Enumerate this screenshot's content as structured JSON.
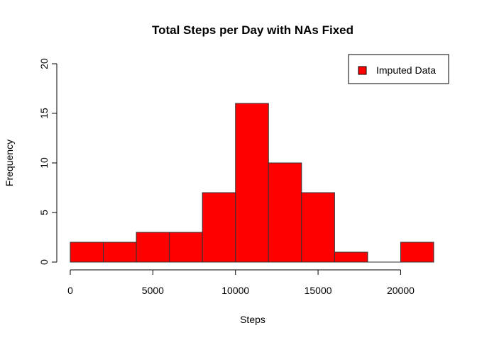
{
  "chart_data": {
    "type": "bar",
    "title": "Total Steps per Day with NAs Fixed",
    "xlabel": "Steps",
    "ylabel": "Frequency",
    "bin_width": 2000,
    "bins": [
      {
        "start": 0,
        "end": 2000,
        "count": 2
      },
      {
        "start": 2000,
        "end": 4000,
        "count": 2
      },
      {
        "start": 4000,
        "end": 6000,
        "count": 3
      },
      {
        "start": 6000,
        "end": 8000,
        "count": 3
      },
      {
        "start": 8000,
        "end": 10000,
        "count": 7
      },
      {
        "start": 10000,
        "end": 12000,
        "count": 16
      },
      {
        "start": 12000,
        "end": 14000,
        "count": 10
      },
      {
        "start": 14000,
        "end": 16000,
        "count": 7
      },
      {
        "start": 16000,
        "end": 18000,
        "count": 1
      },
      {
        "start": 18000,
        "end": 20000,
        "count": 0
      },
      {
        "start": 20000,
        "end": 22000,
        "count": 2
      }
    ],
    "xlim": [
      0,
      22000
    ],
    "ylim": [
      0,
      20
    ],
    "x_ticks": [
      0,
      5000,
      10000,
      15000,
      20000
    ],
    "y_ticks": [
      0,
      5,
      10,
      15,
      20
    ],
    "x_tick_labels": [
      "0",
      "5000",
      "10000",
      "15000",
      "20000"
    ],
    "y_tick_labels": [
      "0",
      "5",
      "10",
      "15",
      "20"
    ],
    "bar_color": "#ff0000",
    "bar_border_color": "#333333",
    "legend": {
      "placement": "top-right",
      "entries": [
        {
          "label": "Imputed Data",
          "color": "#ff0000"
        }
      ]
    },
    "grid": false
  }
}
